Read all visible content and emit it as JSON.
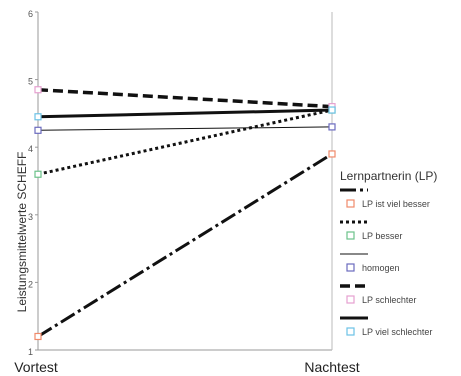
{
  "chart_data": {
    "type": "line",
    "title": "",
    "xlabel": "",
    "ylabel": "Leistungsmittelwerte SCHEFF",
    "categories": [
      "Vortest",
      "Nachtest"
    ],
    "ylim": [
      1,
      6
    ],
    "yticks": [
      1,
      2,
      3,
      4,
      5,
      6
    ],
    "grid": false,
    "legend_title": "Lernpartnerin (LP)",
    "legend_position": "right",
    "series": [
      {
        "name": "LP ist viel besser",
        "values": [
          1.2,
          3.9
        ],
        "dash": "16,4,3,4",
        "width": 3,
        "marker": "#f08a6a"
      },
      {
        "name": "LP besser",
        "values": [
          3.6,
          4.55
        ],
        "dash": "3,3",
        "width": 3,
        "marker": "#6cc28a"
      },
      {
        "name": "homogen",
        "values": [
          4.25,
          4.3
        ],
        "dash": "",
        "width": 1,
        "marker": "#6b6bbf"
      },
      {
        "name": "LP schlechter",
        "values": [
          4.85,
          4.6
        ],
        "dash": "10,5",
        "width": 3.5,
        "marker": "#e6a0d0"
      },
      {
        "name": "LP viel schlechter",
        "values": [
          4.45,
          4.55
        ],
        "dash": "",
        "width": 3,
        "marker": "#6cc2e6"
      }
    ]
  }
}
